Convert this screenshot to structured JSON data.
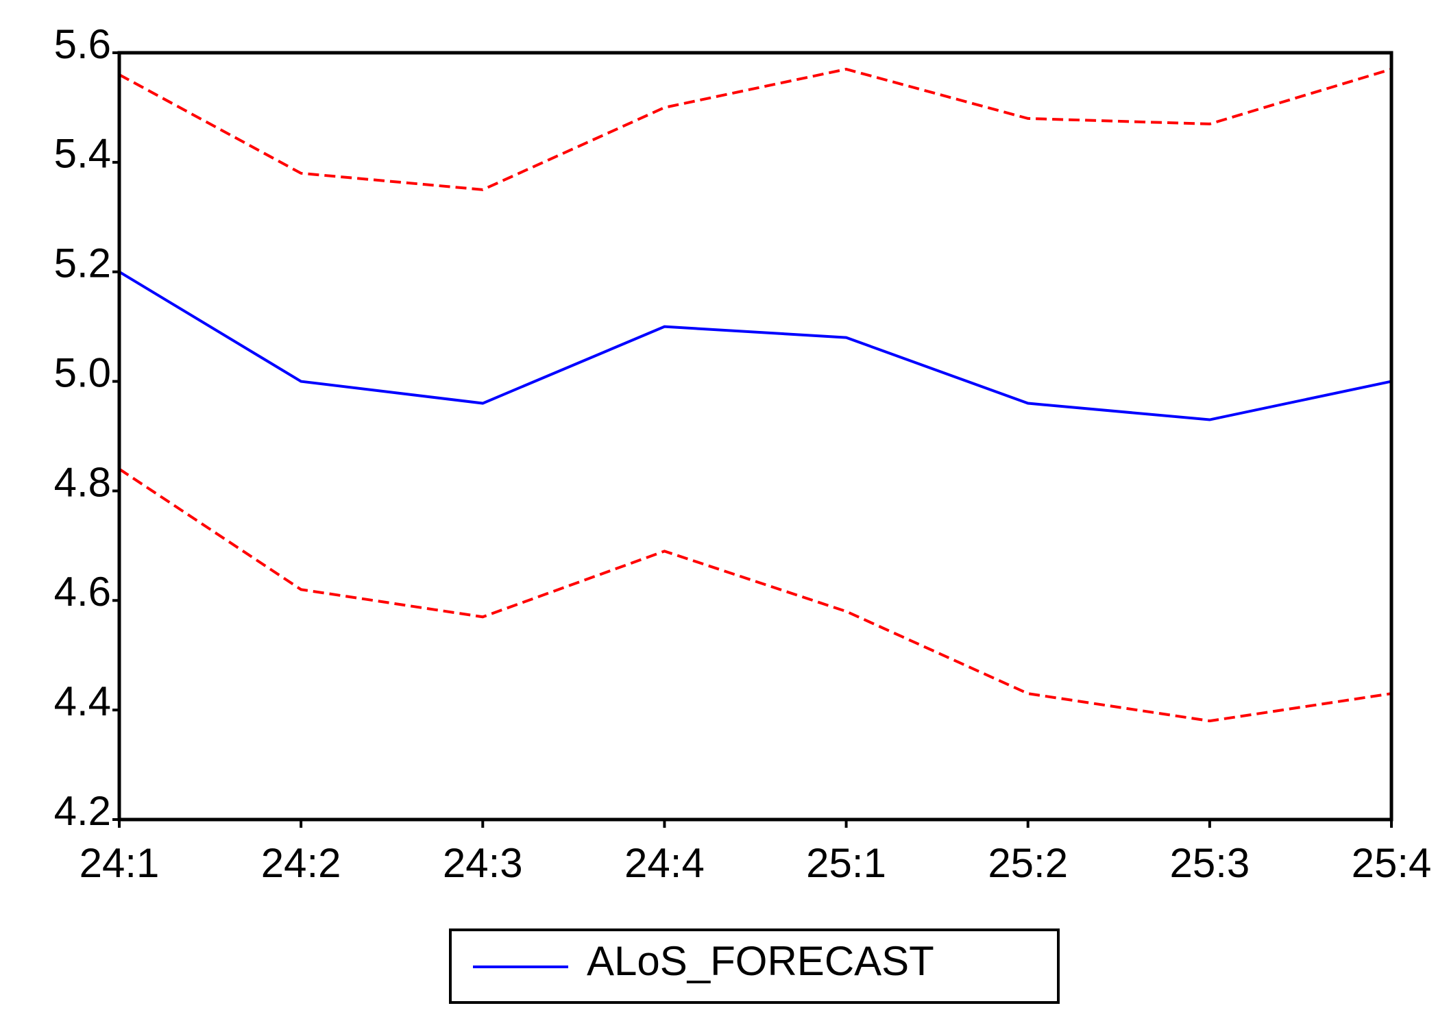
{
  "chart_data": {
    "type": "line",
    "categories": [
      "24:1",
      "24:2",
      "24:3",
      "24:4",
      "25:1",
      "25:2",
      "25:3",
      "25:4"
    ],
    "series": [
      {
        "name": "ALoS_FORECAST",
        "color": "#0000ff",
        "dash": false,
        "values": [
          5.2,
          5.0,
          4.96,
          5.1,
          5.08,
          4.96,
          4.93,
          5.0
        ]
      },
      {
        "color": "#ff0000",
        "dash": true,
        "values": [
          5.56,
          5.38,
          5.35,
          5.5,
          5.57,
          5.48,
          5.47,
          5.57
        ]
      },
      {
        "color": "#ff0000",
        "dash": true,
        "values": [
          4.84,
          4.62,
          4.57,
          4.69,
          4.58,
          4.43,
          4.38,
          4.43
        ]
      }
    ],
    "ylim": [
      4.2,
      5.6
    ],
    "yticks": [
      4.2,
      4.4,
      4.6,
      4.8,
      {
        "value": 5,
        "label": "5.0"
      },
      5.2,
      5.4,
      5.6
    ],
    "grid": false
  }
}
